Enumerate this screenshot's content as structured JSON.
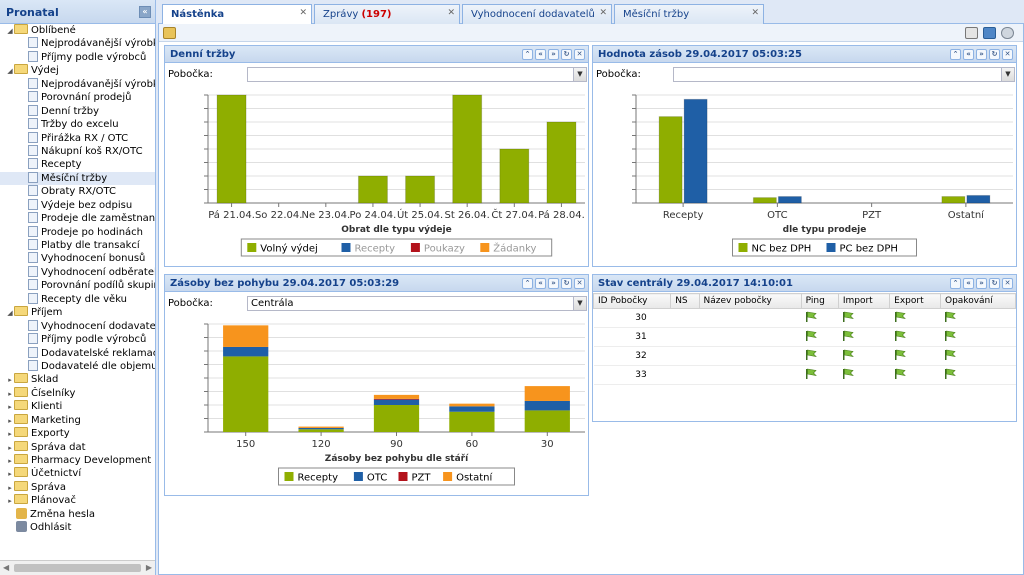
{
  "sidebar": {
    "title": "Pronatal",
    "tree": [
      {
        "label": "Oblíbené",
        "type": "folder",
        "level": 1,
        "open": true
      },
      {
        "label": "Nejprodávanější výrobky",
        "type": "page",
        "level": 2
      },
      {
        "label": "Příjmy podle výrobců",
        "type": "page",
        "level": 2
      },
      {
        "label": "Výdej",
        "type": "folder",
        "level": 1,
        "open": true
      },
      {
        "label": "Nejprodávanější výrobky",
        "type": "page",
        "level": 2
      },
      {
        "label": "Porovnání prodejů",
        "type": "page",
        "level": 2
      },
      {
        "label": "Denní tržby",
        "type": "page",
        "level": 2
      },
      {
        "label": "Tržby do excelu",
        "type": "page",
        "level": 2
      },
      {
        "label": "Přirážka RX / OTC",
        "type": "page",
        "level": 2
      },
      {
        "label": "Nákupní koš RX/OTC",
        "type": "page",
        "level": 2
      },
      {
        "label": "Recepty",
        "type": "page",
        "level": 2
      },
      {
        "label": "Měsíční tržby",
        "type": "page",
        "level": 2,
        "selected": true
      },
      {
        "label": "Obraty RX/OTC",
        "type": "page",
        "level": 2
      },
      {
        "label": "Výdeje bez odpisu",
        "type": "page",
        "level": 2
      },
      {
        "label": "Prodeje dle zaměstnanců",
        "type": "page",
        "level": 2
      },
      {
        "label": "Prodeje po hodinách",
        "type": "page",
        "level": 2
      },
      {
        "label": "Platby dle transakcí",
        "type": "page",
        "level": 2
      },
      {
        "label": "Vyhodnocení bonusů",
        "type": "page",
        "level": 2
      },
      {
        "label": "Vyhodnocení odběratelů",
        "type": "page",
        "level": 2
      },
      {
        "label": "Porovnání podílů skupin",
        "type": "page",
        "level": 2
      },
      {
        "label": "Recepty dle věku",
        "type": "page",
        "level": 2
      },
      {
        "label": "Příjem",
        "type": "folder",
        "level": 1,
        "open": true
      },
      {
        "label": "Vyhodnocení dodavatelů",
        "type": "page",
        "level": 2
      },
      {
        "label": "Příjmy podle výrobců",
        "type": "page",
        "level": 2
      },
      {
        "label": "Dodavatelské reklamace",
        "type": "page",
        "level": 2
      },
      {
        "label": "Dodavatelé dle objemu zbo",
        "type": "page",
        "level": 2
      },
      {
        "label": "Sklad",
        "type": "folder",
        "level": 1
      },
      {
        "label": "Číselníky",
        "type": "folder",
        "level": 1
      },
      {
        "label": "Klienti",
        "type": "folder",
        "level": 1
      },
      {
        "label": "Marketing",
        "type": "folder",
        "level": 1
      },
      {
        "label": "Exporty",
        "type": "folder",
        "level": 1
      },
      {
        "label": "Správa dat",
        "type": "folder",
        "level": 1
      },
      {
        "label": "Pharmacy Development",
        "type": "folder",
        "level": 1
      },
      {
        "label": "Účetnictví",
        "type": "folder",
        "level": 1
      },
      {
        "label": "Správa",
        "type": "folder",
        "level": 1
      },
      {
        "label": "Plánovač",
        "type": "folder",
        "level": 1
      },
      {
        "label": "Změna hesla",
        "type": "action",
        "icon": "key-icon"
      },
      {
        "label": "Odhlásit",
        "type": "action",
        "icon": "logout-icon"
      }
    ]
  },
  "tabs": [
    {
      "label": "Nástěnka",
      "active": true
    },
    {
      "label": "Zprávy",
      "badge": "(197)"
    },
    {
      "label": "Vyhodnocení dodavatelů"
    },
    {
      "label": "Měsíční tržby"
    }
  ],
  "panels": {
    "daily": {
      "title": "Denní tržby",
      "branch_label": "Pobočka:",
      "branch_value": ""
    },
    "stock": {
      "title": "Hodnota zásob 29.04.2017 05:03:25",
      "branch_label": "Pobočka:",
      "branch_value": ""
    },
    "idle": {
      "title": "Zásoby bez pohybu 29.04.2017 05:03:29",
      "branch_label": "Pobočka:",
      "branch_value": "Centrála"
    },
    "central": {
      "title": "Stav centrály 29.04.2017 14:10:01",
      "columns": [
        "ID Pobočky",
        "NS",
        "Název pobočky",
        "Ping",
        "Import",
        "Export",
        "Opakování"
      ],
      "rows": [
        {
          "id": "30"
        },
        {
          "id": "31"
        },
        {
          "id": "32"
        },
        {
          "id": "33"
        }
      ]
    }
  },
  "colors": {
    "green": "#8fae00",
    "blue": "#1f5fa6",
    "red": "#b3121b",
    "orange": "#f7941d"
  },
  "chart_data": [
    {
      "type": "bar",
      "title": "Denní tržby",
      "xlabel": "Obrat dle typu výdeje",
      "categories": [
        "Pá 21.04.",
        "So 22.04.",
        "Ne 23.04.",
        "Po 24.04.",
        "Út 25.04.",
        "St 26.04.",
        "Čt 27.04.",
        "Pá 28.04."
      ],
      "series": [
        {
          "name": "Volný výdej",
          "color": "#8fae00",
          "values": [
            8,
            0,
            0,
            2,
            2,
            8,
            4,
            6
          ]
        },
        {
          "name": "Recepty",
          "color": "#1f5fa6",
          "values": [
            0,
            0,
            0,
            0,
            0,
            0,
            0,
            0
          ],
          "disabled": true
        },
        {
          "name": "Poukazy",
          "color": "#b3121b",
          "values": [
            0,
            0,
            0,
            0,
            0,
            0,
            0,
            0
          ],
          "disabled": true
        },
        {
          "name": "Žádanky",
          "color": "#f7941d",
          "values": [
            0,
            0,
            0,
            0,
            0,
            0,
            0,
            0
          ],
          "disabled": true
        }
      ],
      "ylim": [
        0,
        8
      ]
    },
    {
      "type": "bar",
      "title": "Hodnota zásob 29.04.2017 05:03:25",
      "xlabel": "dle typu prodeje",
      "categories": [
        "Recepty",
        "OTC",
        "PZT",
        "Ostatní"
      ],
      "series": [
        {
          "name": "NC bez DPH",
          "color": "#8fae00",
          "values": [
            8,
            0.5,
            0,
            0.6
          ]
        },
        {
          "name": "PC bez DPH",
          "color": "#1f5fa6",
          "values": [
            9.6,
            0.6,
            0,
            0.7
          ]
        }
      ],
      "ylim": [
        0,
        10
      ]
    },
    {
      "type": "bar",
      "stacked": true,
      "title": "Zásoby bez pohybu 29.04.2017 05:03:29",
      "xlabel": "Zásoby bez pohybu dle stáří",
      "categories": [
        "150",
        "120",
        "90",
        "60",
        "30"
      ],
      "series": [
        {
          "name": "Recepty",
          "color": "#8fae00",
          "values": [
            5.6,
            0.2,
            2.0,
            1.5,
            1.6
          ]
        },
        {
          "name": "OTC",
          "color": "#1f5fa6",
          "values": [
            0.7,
            0.1,
            0.4,
            0.4,
            0.7
          ]
        },
        {
          "name": "PZT",
          "color": "#b3121b",
          "values": [
            0,
            0,
            0.05,
            0,
            0
          ]
        },
        {
          "name": "Ostatní",
          "color": "#f7941d",
          "values": [
            1.6,
            0.1,
            0.3,
            0.2,
            1.1
          ]
        }
      ],
      "ylim": [
        0,
        8
      ]
    }
  ]
}
